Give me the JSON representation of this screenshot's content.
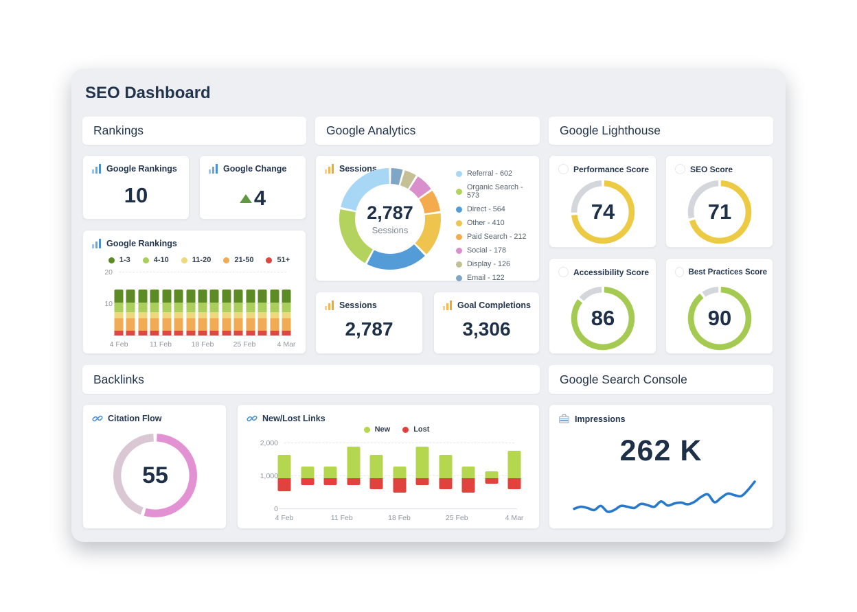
{
  "dashboard": {
    "title": "SEO Dashboard"
  },
  "sections": {
    "rankings": {
      "title": "Rankings"
    },
    "analytics": {
      "title": "Google Analytics"
    },
    "lighthouse": {
      "title": "Google Lighthouse"
    },
    "backlinks": {
      "title": "Backlinks"
    },
    "search_console": {
      "title": "Google Search Console"
    }
  },
  "cards": {
    "google_rankings_stat": {
      "title": "Google Rankings",
      "value": "10"
    },
    "google_change": {
      "title": "Google Change",
      "value": "4",
      "direction": "up"
    },
    "rankings_chart": {
      "title": "Google Rankings"
    },
    "sessions_donut": {
      "title": "Sessions"
    },
    "sessions_stat": {
      "title": "Sessions",
      "value": "2,787"
    },
    "goal_completions": {
      "title": "Goal Completions",
      "value": "3,306"
    },
    "performance": {
      "title": "Performance Score"
    },
    "seo_score": {
      "title": "SEO Score"
    },
    "accessibility": {
      "title": "Accessibility Score"
    },
    "best_practices": {
      "title": "Best Practices Score"
    },
    "citation_flow": {
      "title": "Citation Flow"
    },
    "new_lost_links": {
      "title": "New/Lost Links"
    },
    "impressions": {
      "title": "Impressions",
      "value": "262 K"
    }
  },
  "icons": {
    "blue_bar_chart": "bar-chart-icon",
    "orange_bar_chart": "bar-chart-icon",
    "gauge_placeholder": "circle-icon",
    "backlinks": "link-icon",
    "search_console": "briefcase-icon",
    "google_change_direction": "triangle-up-icon"
  },
  "colors": {
    "panel_bg": "#edeff3",
    "text_dark": "#1e3048",
    "text_grey": "#8d97a1",
    "icon_blue": "#4a90d3",
    "icon_orange": "#f5a623",
    "change_green": "#5f9743",
    "impressions_line": "#2878cc"
  },
  "chart_data": {
    "google_rankings_trend": {
      "type": "bar",
      "stacked": true,
      "bars": 15,
      "ylim": [
        0,
        20
      ],
      "yticks": [
        {
          "v": 10,
          "label": "10"
        },
        {
          "v": 20,
          "label": "20"
        }
      ],
      "x_tick_labels": [
        "4 Feb",
        "11 Feb",
        "18 Feb",
        "25 Feb",
        "4 Mar"
      ],
      "series": [
        {
          "name": "1-3",
          "color": "#5c8b26",
          "values": [
            4,
            4,
            4,
            4,
            4,
            4,
            4,
            4,
            4,
            4,
            4,
            4,
            4,
            4,
            4
          ]
        },
        {
          "name": "4-10",
          "color": "#a9ce5b",
          "values": [
            3,
            3,
            3,
            3,
            3,
            3,
            3,
            3,
            3,
            3,
            3,
            3,
            3,
            3,
            3
          ]
        },
        {
          "name": "11-20",
          "color": "#eed87d",
          "values": [
            2,
            2,
            2,
            2,
            2,
            2,
            2,
            2,
            2,
            2,
            2,
            2,
            2,
            2,
            2
          ]
        },
        {
          "name": "21-50",
          "color": "#f1ab55",
          "values": [
            4,
            4,
            4,
            4,
            4,
            4,
            4,
            4,
            4,
            4,
            4,
            4,
            4,
            4,
            4
          ]
        },
        {
          "name": "51+",
          "color": "#dd4742",
          "values": [
            1.5,
            1.5,
            1.5,
            1.5,
            1.5,
            1.5,
            1.5,
            1.5,
            1.5,
            1.5,
            1.5,
            1.5,
            1.5,
            1.5,
            1.5
          ]
        }
      ]
    },
    "sessions_donut": {
      "type": "pie",
      "total": 2787,
      "center_value": "2,787",
      "center_label": "Sessions",
      "segments": [
        {
          "label": "Referral",
          "value": 602,
          "color": "#a8d6f5"
        },
        {
          "label": "Organic Search",
          "value": 573,
          "color": "#b3d25e"
        },
        {
          "label": "Direct",
          "value": 564,
          "color": "#549cd7"
        },
        {
          "label": "Other",
          "value": 410,
          "color": "#eec44f"
        },
        {
          "label": "Paid Search",
          "value": 212,
          "color": "#f3ab4e"
        },
        {
          "label": "Social",
          "value": 178,
          "color": "#d98fcb"
        },
        {
          "label": "Display",
          "value": 126,
          "color": "#c5bf95"
        },
        {
          "label": "Email",
          "value": 122,
          "color": "#7fa7c5"
        }
      ]
    },
    "performance_gauge": {
      "type": "gauge",
      "value": 74,
      "color": "#ecca43",
      "track": "#d3d6da"
    },
    "seo_gauge": {
      "type": "gauge",
      "value": 71,
      "color": "#ecca43",
      "track": "#d3d6da"
    },
    "accessibility_gauge": {
      "type": "gauge",
      "value": 86,
      "color": "#a5ca52",
      "track": "#d3d6da"
    },
    "best_practices_gauge": {
      "type": "gauge",
      "value": 90,
      "color": "#a5ca52",
      "track": "#d3d6da"
    },
    "citation_flow_gauge": {
      "type": "gauge",
      "value": 55,
      "color": "#e292d2",
      "track": "#d9c8d4"
    },
    "new_lost_links": {
      "type": "bar",
      "stacked": true,
      "floating": true,
      "baseline": 930,
      "ylim": [
        0,
        2000
      ],
      "yticks": [
        {
          "v": 0,
          "label": "0"
        },
        {
          "v": 1000,
          "label": "1,000"
        },
        {
          "v": 2000,
          "label": "2,000"
        }
      ],
      "x_tick_labels": [
        "4 Feb",
        "11 Feb",
        "18 Feb",
        "25 Feb",
        "4 Mar"
      ],
      "series": [
        {
          "name": "New",
          "color": "#b5d64f"
        },
        {
          "name": "Lost",
          "color": "#e2423d"
        }
      ],
      "new_top": [
        1650,
        1290,
        1300,
        1890,
        1650,
        1290,
        1890,
        1650,
        1290,
        1140,
        1770
      ],
      "lost_bottom": [
        550,
        730,
        730,
        730,
        610,
        490,
        730,
        610,
        490,
        770,
        610
      ]
    },
    "impressions_trend": {
      "type": "line",
      "color": "#2878cc",
      "values": [
        14,
        19,
        16,
        11,
        21,
        7,
        11,
        21,
        19,
        16,
        26,
        23,
        19,
        32,
        22,
        27,
        29,
        25,
        31,
        43,
        49,
        30,
        41,
        51,
        47,
        45,
        60,
        80
      ]
    }
  }
}
